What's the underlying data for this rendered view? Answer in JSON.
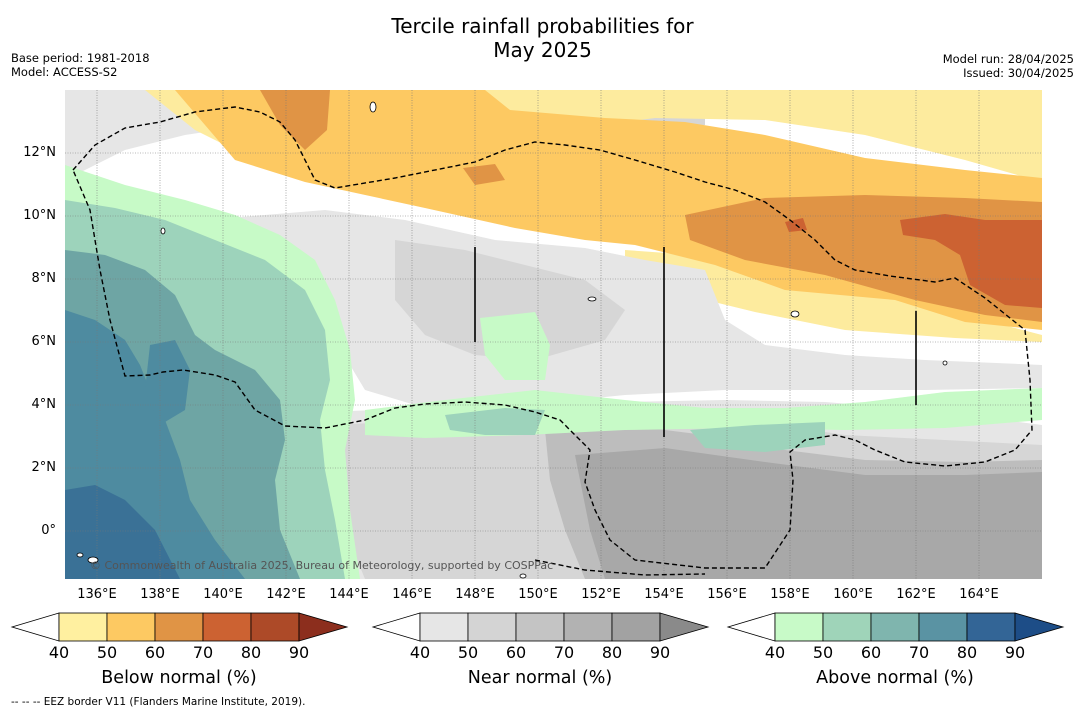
{
  "header": {
    "title_line1": "Tercile rainfall probabilities for",
    "title_line2": "May 2025",
    "base_period": "Base period: 1981-2018",
    "model": "Model: ACCESS-S2",
    "model_run": "Model run: 28/04/2025",
    "issued": "Issued: 30/04/2025"
  },
  "map": {
    "copyright": "© Commonwealth of Australia 2025, Bureau of Meteorology, supported by COSPPac",
    "x_ticks": [
      "136°E",
      "138°E",
      "140°E",
      "142°E",
      "144°E",
      "146°E",
      "148°E",
      "150°E",
      "152°E",
      "154°E",
      "156°E",
      "158°E",
      "160°E",
      "162°E",
      "164°E"
    ],
    "y_ticks": [
      "12°N",
      "10°N",
      "8°N",
      "6°N",
      "4°N",
      "2°N",
      "0°"
    ],
    "lon_range": [
      135,
      166
    ],
    "lat_range": [
      -1.5,
      14
    ],
    "land_color": "#ffffff",
    "grid": true,
    "eez_border_style": "dashed",
    "zones": [
      {
        "category": "below",
        "probability": "40-50",
        "color": "#fdeb9e"
      },
      {
        "category": "below",
        "probability": "50-60",
        "color": "#fdc962"
      },
      {
        "category": "below",
        "probability": "60-70",
        "color": "#e09445"
      },
      {
        "category": "below",
        "probability": "70-80",
        "color": "#cc6232"
      },
      {
        "category": "near",
        "probability": "40-50",
        "color": "#e6e6e6"
      },
      {
        "category": "near",
        "probability": "50-60",
        "color": "#d2d2d2"
      },
      {
        "category": "near",
        "probability": "60-70",
        "color": "#bdbdbd"
      },
      {
        "category": "near",
        "probability": "70-80",
        "color": "#a8a8a8"
      },
      {
        "category": "above",
        "probability": "40-50",
        "color": "#c7fac7"
      },
      {
        "category": "above",
        "probability": "50-60",
        "color": "#9dd3bb"
      },
      {
        "category": "above",
        "probability": "60-70",
        "color": "#6ea5a4"
      },
      {
        "category": "above",
        "probability": "70-80",
        "color": "#4e8ba0"
      },
      {
        "category": "above",
        "probability": "80-90",
        "color": "#3a7196"
      }
    ]
  },
  "colorbars": [
    {
      "id": "below",
      "title": "Below normal (%)",
      "ticks": [
        "40",
        "50",
        "60",
        "70",
        "80",
        "90"
      ],
      "colors": [
        "#fff0a0",
        "#fdc962",
        "#e09445",
        "#cc6232",
        "#ad4a28"
      ],
      "extend_color": "#8c2e1d"
    },
    {
      "id": "near",
      "title": "Near normal (%)",
      "ticks": [
        "40",
        "50",
        "60",
        "70",
        "80",
        "90"
      ],
      "colors": [
        "#e6e6e6",
        "#d4d4d4",
        "#c4c4c4",
        "#b2b2b2",
        "#a2a2a2"
      ],
      "extend_color": "#8a8a8a"
    },
    {
      "id": "above",
      "title": "Above normal (%)",
      "ticks": [
        "40",
        "50",
        "60",
        "70",
        "80",
        "90"
      ],
      "colors": [
        "#c8fac8",
        "#9fd4b9",
        "#7fb5ae",
        "#5a93a3",
        "#336596"
      ],
      "extend_color": "#1d4d87"
    }
  ],
  "footnote": "--  --  -- EEZ border V11 (Flanders Marine Institute, 2019)."
}
